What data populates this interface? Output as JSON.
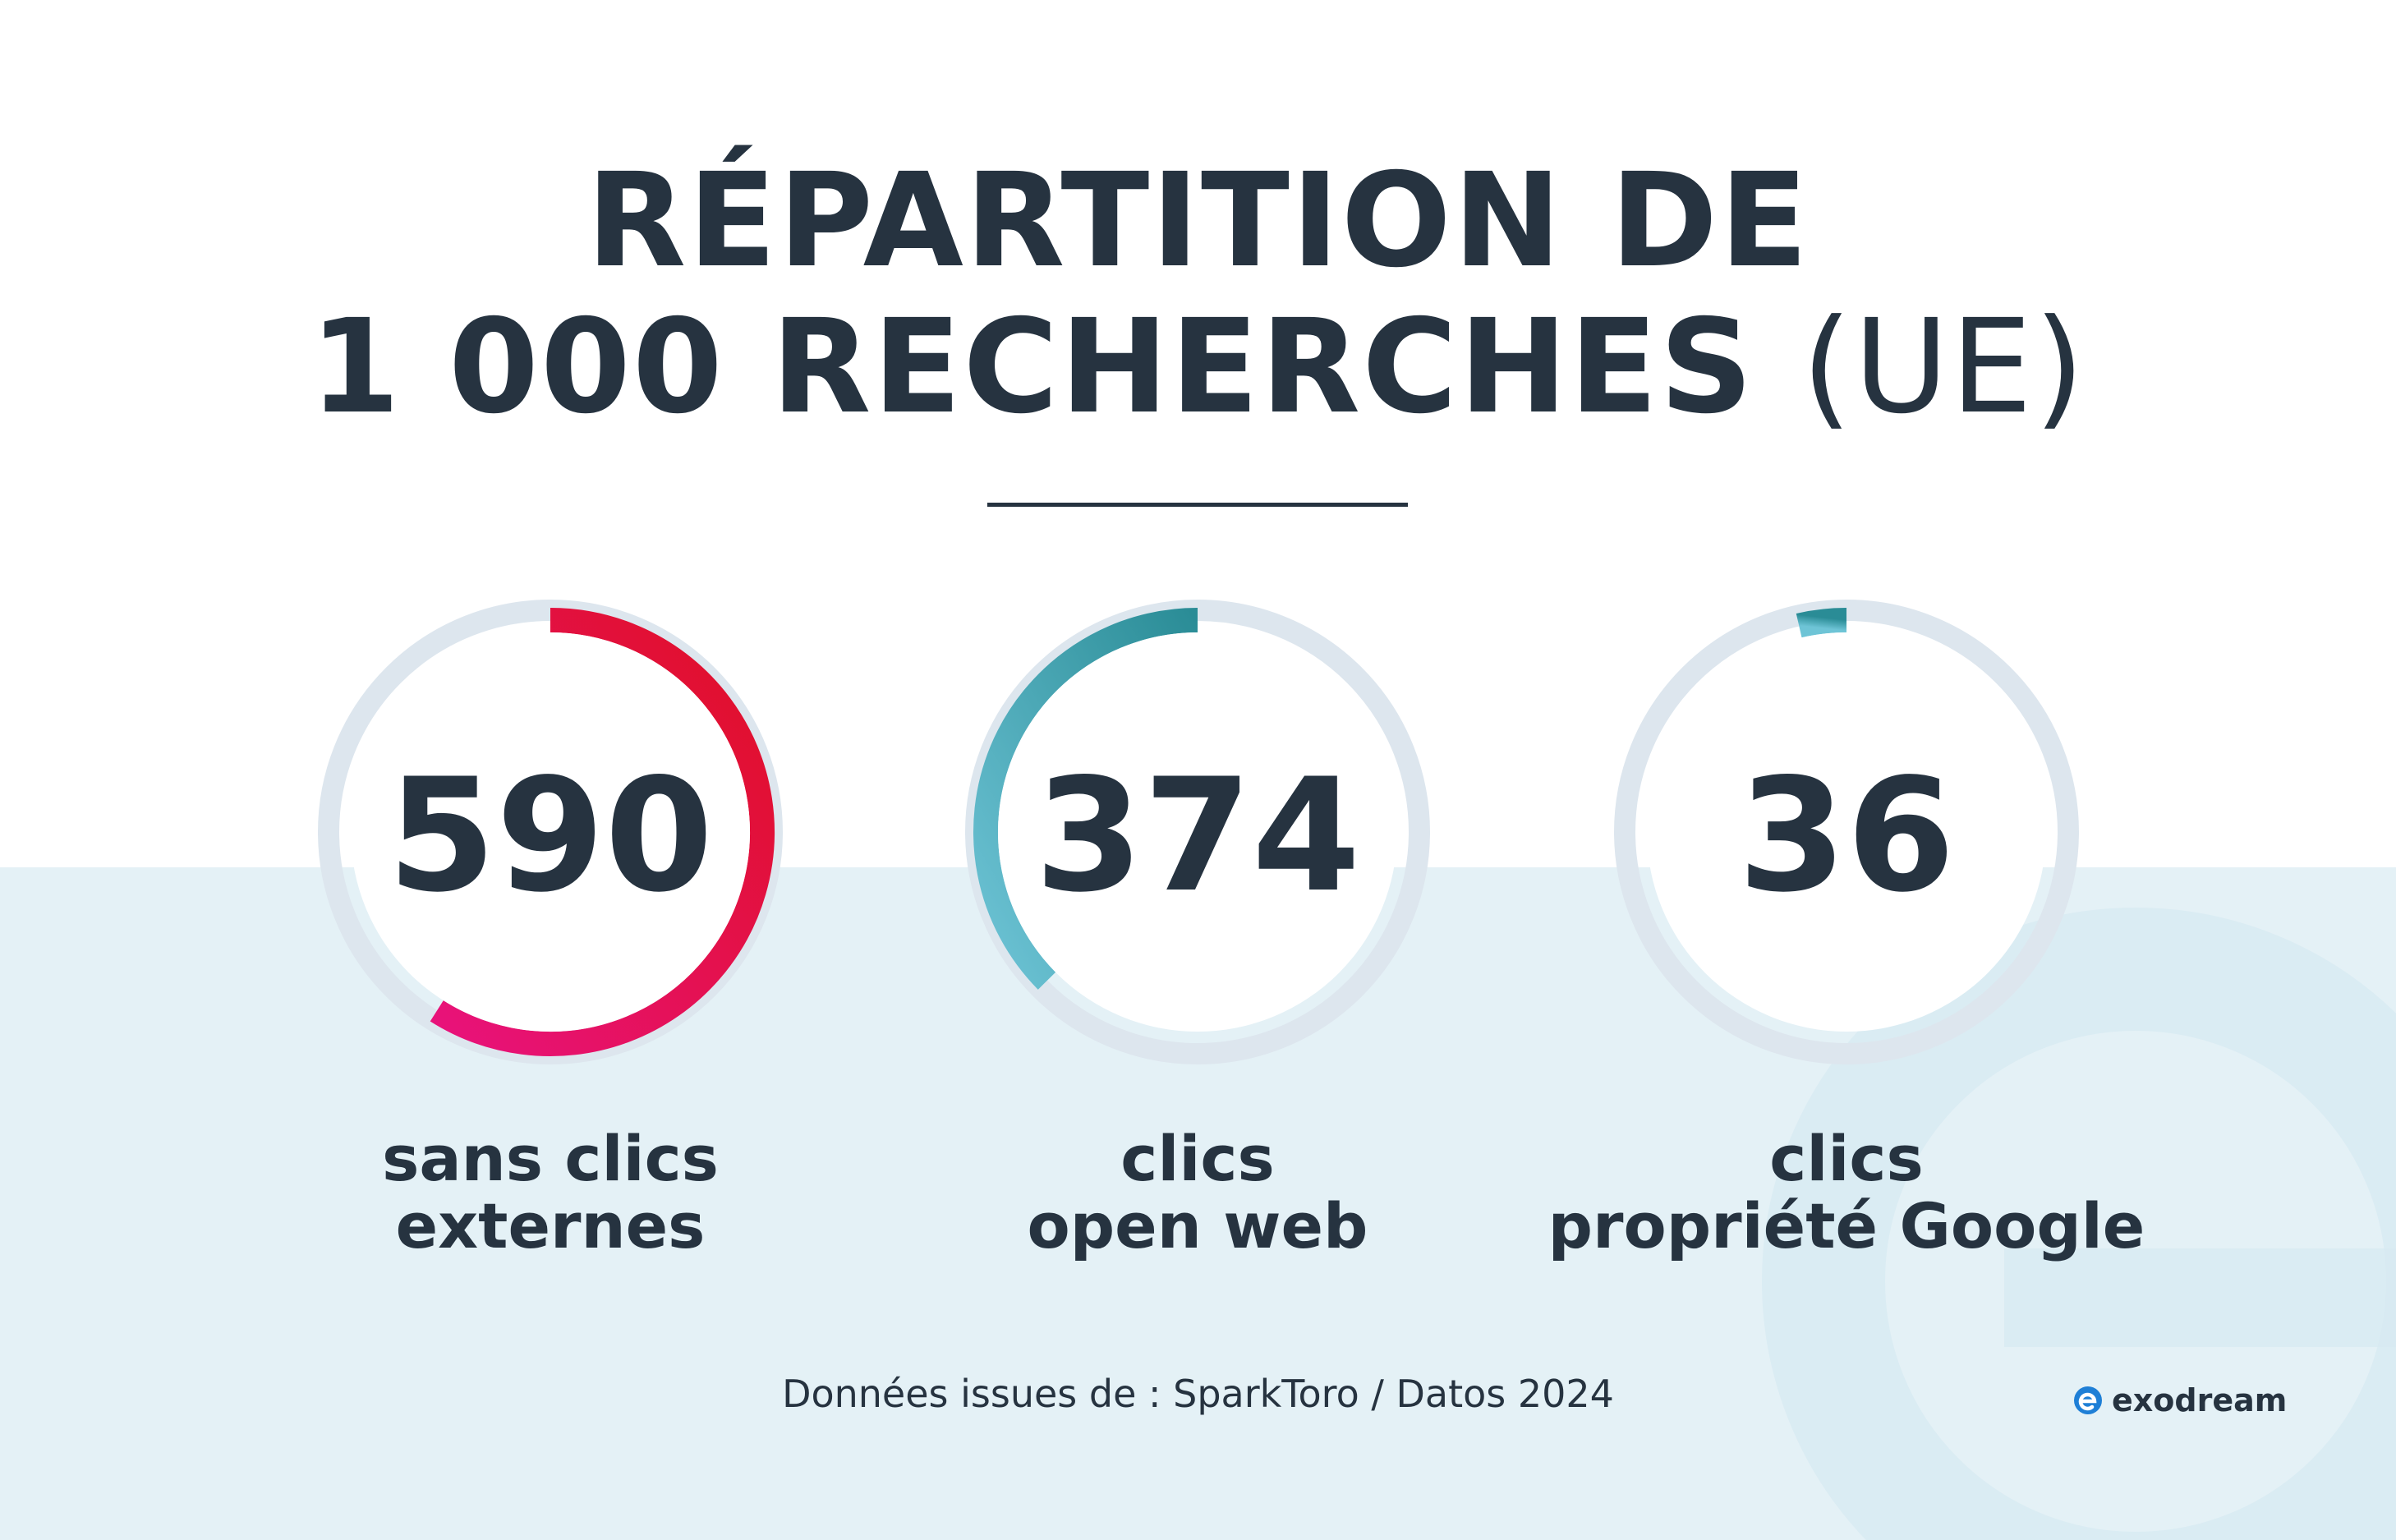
{
  "title": {
    "line1": "RÉPARTITION DE",
    "line2_bold": "1 000 RECHERCHES",
    "line2_light": "(UE)"
  },
  "chart_data": {
    "type": "donut",
    "total": 1000,
    "items": [
      {
        "value": 590,
        "value_label": "590",
        "label_lines": [
          "sans clics",
          "externes"
        ],
        "gradient": [
          "#e8127c",
          "#e01024"
        ]
      },
      {
        "value": 374,
        "value_label": "374",
        "label_lines": [
          "clics",
          "open web"
        ],
        "gradient": [
          "#6ec4d6",
          "#2a8c96"
        ]
      },
      {
        "value": 36,
        "value_label": "36",
        "label_lines": [
          "clics",
          "propriété Google"
        ],
        "gradient": [
          "#6ec4d6",
          "#2a8c96"
        ]
      }
    ],
    "track_color": "#dde6ee"
  },
  "source": "Données issues de : SparkToro / Datos 2024",
  "logo": {
    "name": "exodream-icon",
    "text": "exodream",
    "color": "#1e7fd6"
  }
}
